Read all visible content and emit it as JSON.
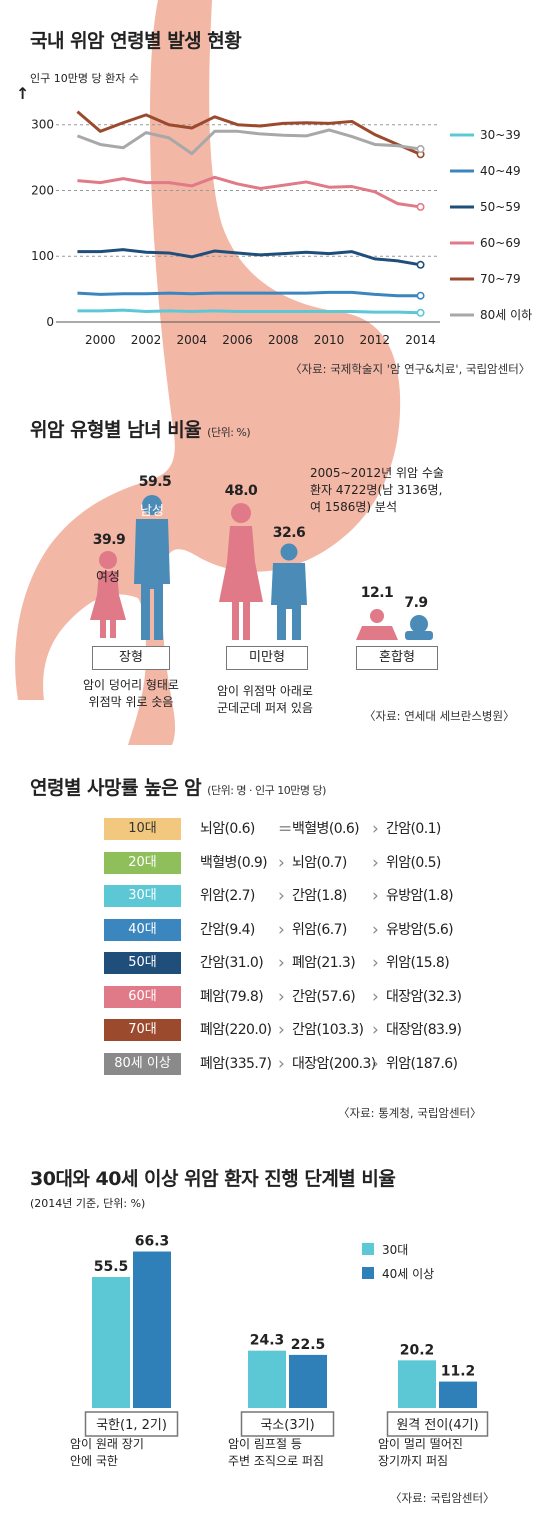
{
  "section1": {
    "title": "국내 위암 연령별 발생 현황",
    "ylabel": "인구 10만명 당 환자 수",
    "source": "〈자료: 국제학술지 '암 연구&치료', 국립암센터〉"
  },
  "section2": {
    "title": "위암 유형별 남녀 비율",
    "unit": "(단위: %)",
    "note": [
      "2005~2012년 위암 수술",
      "환자 4722명(남 3136명,",
      "여 1586명) 분석"
    ],
    "female_label": "여성",
    "male_label": "남성",
    "types": [
      {
        "name": "장형",
        "female": "39.9",
        "male": "59.5",
        "desc": [
          "암이 덩어리 형태로",
          "위점막 위로 솟음"
        ]
      },
      {
        "name": "미만형",
        "female": "48.0",
        "male": "32.6",
        "desc": [
          "암이 위점막 아래로",
          "군데군데 퍼져 있음"
        ]
      },
      {
        "name": "혼합형",
        "female": "12.1",
        "male": "7.9",
        "desc": []
      }
    ],
    "source": "〈자료: 연세대 세브란스병원〉",
    "colors": {
      "female": "#e07a88",
      "male": "#4a8bb8"
    }
  },
  "section3": {
    "title": "연령별 사망률 높은 암",
    "unit": "(단위: 명 · 인구 10만명 당)",
    "rows": [
      {
        "age": "10대",
        "color": "#f2c77e",
        "text_color": "#333",
        "c1": "뇌암(0.6)",
        "s1": "=",
        "c2": "백혈병(0.6)",
        "s2": "›",
        "c3": "간암(0.1)"
      },
      {
        "age": "20대",
        "color": "#8fbf5a",
        "text_color": "#fff",
        "c1": "백혈병(0.9)",
        "s1": "›",
        "c2": "뇌암(0.7)",
        "s2": "›",
        "c3": "위암(0.5)"
      },
      {
        "age": "30대",
        "color": "#5cc8d6",
        "text_color": "#fff",
        "c1": "위암(2.7)",
        "s1": "›",
        "c2": "간암(1.8)",
        "s2": "›",
        "c3": "유방암(1.8)"
      },
      {
        "age": "40대",
        "color": "#3c86c0",
        "text_color": "#fff",
        "c1": "간암(9.4)",
        "s1": "›",
        "c2": "위암(6.7)",
        "s2": "›",
        "c3": "유방암(5.6)"
      },
      {
        "age": "50대",
        "color": "#1f4e7a",
        "text_color": "#fff",
        "c1": "간암(31.0)",
        "s1": "›",
        "c2": "폐암(21.3)",
        "s2": "›",
        "c3": "위암(15.8)"
      },
      {
        "age": "60대",
        "color": "#e07a88",
        "text_color": "#fff",
        "c1": "폐암(79.8)",
        "s1": "›",
        "c2": "간암(57.6)",
        "s2": "›",
        "c3": "대장암(32.3)"
      },
      {
        "age": "70대",
        "color": "#9c4a2e",
        "text_color": "#fff",
        "c1": "폐암(220.0)",
        "s1": "›",
        "c2": "간암(103.3)",
        "s2": "›",
        "c3": "대장암(83.9)"
      },
      {
        "age": "80세 이상",
        "color": "#8a8a8a",
        "text_color": "#fff",
        "c1": "폐암(335.7)",
        "s1": "›",
        "c2": "대장암(200.3)",
        "s2": "›",
        "c3": "위암(187.6)"
      }
    ],
    "source": "〈자료: 통계청, 국립암센터〉"
  },
  "section4": {
    "title": "30대와 40세 이상 위암 환자 진행 단계별 비율",
    "subtitle": "(2014년 기준, 단위: %)",
    "descs": [
      [
        "암이 원래 장기",
        "안에 국한"
      ],
      [
        "암이 림프절 등",
        "주변 조직으로 퍼짐"
      ],
      [
        "암이 멀리 떨어진",
        "장기까지 퍼짐"
      ]
    ],
    "source": "〈자료: 국립암센터〉"
  },
  "chart_data": [
    {
      "type": "line",
      "title": "국내 위암 연령별 발생 현황",
      "ylabel": "인구 10만명 당 환자 수",
      "x": [
        1999,
        2000,
        2001,
        2002,
        2003,
        2004,
        2005,
        2006,
        2007,
        2008,
        2009,
        2010,
        2011,
        2012,
        2013,
        2014
      ],
      "xticks": [
        2000,
        2002,
        2004,
        2006,
        2008,
        2010,
        2012,
        2014
      ],
      "yticks": [
        0,
        100,
        200,
        300
      ],
      "ylim": [
        0,
        330
      ],
      "xlim": [
        1998.5,
        2014.5
      ],
      "grid": "dashed horizontal at 100, 200, 300",
      "legend": "right",
      "series": [
        {
          "name": "30~39",
          "color": "#5cc8d6",
          "values": [
            17,
            17,
            18,
            16,
            17,
            16,
            17,
            16,
            16,
            16,
            16,
            16,
            16,
            15,
            15,
            14
          ]
        },
        {
          "name": "40~49",
          "color": "#3c86c0",
          "values": [
            44,
            42,
            43,
            43,
            44,
            43,
            44,
            44,
            44,
            44,
            44,
            45,
            45,
            42,
            40,
            40
          ]
        },
        {
          "name": "50~59",
          "color": "#1f4e7a",
          "values": [
            107,
            107,
            110,
            106,
            105,
            99,
            108,
            105,
            102,
            104,
            106,
            104,
            107,
            96,
            93,
            87
          ]
        },
        {
          "name": "60~69",
          "color": "#e07a88",
          "values": [
            215,
            212,
            218,
            212,
            212,
            207,
            220,
            210,
            203,
            208,
            213,
            205,
            206,
            198,
            180,
            175
          ]
        },
        {
          "name": "70~79",
          "color": "#9c4a2e",
          "values": [
            320,
            290,
            303,
            315,
            300,
            295,
            312,
            300,
            298,
            302,
            303,
            302,
            305,
            285,
            270,
            255
          ]
        },
        {
          "name": "80세 이하",
          "color": "#a8a8a8",
          "values": [
            283,
            270,
            265,
            288,
            280,
            256,
            290,
            290,
            286,
            284,
            283,
            292,
            282,
            270,
            268,
            263
          ]
        }
      ]
    },
    {
      "type": "bar",
      "title": "30대와 40세 이상 위암 환자 진행 단계별 비율",
      "categories": [
        "국한(1, 2기)",
        "국소(3기)",
        "원격 전이(4기)"
      ],
      "series": [
        {
          "name": "30대",
          "color": "#5cc8d6",
          "values": [
            55.5,
            24.3,
            20.2
          ]
        },
        {
          "name": "40세 이상",
          "color": "#2f7fb8",
          "values": [
            66.3,
            22.5,
            11.2
          ]
        }
      ],
      "ylim": [
        0,
        70
      ],
      "legend": "top-right"
    }
  ]
}
